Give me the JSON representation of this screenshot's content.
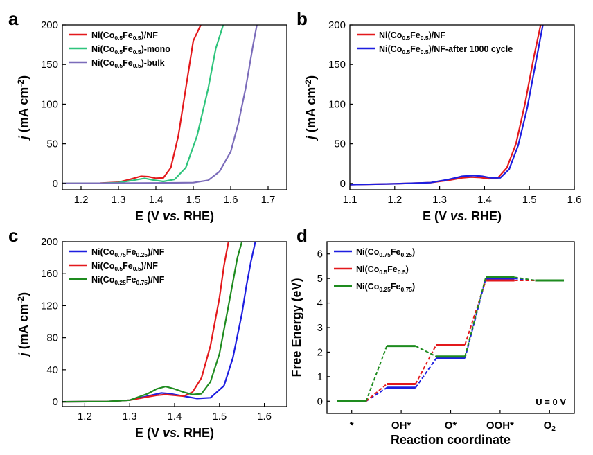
{
  "chart_data": [
    {
      "panel": "a",
      "type": "line",
      "xlabel": "E (V vs. RHE)",
      "ylabel": "j (mA cm-2)",
      "xlim": [
        1.15,
        1.75
      ],
      "ylim": [
        -8,
        200
      ],
      "xticks": [
        "1.2",
        "1.3",
        "1.4",
        "1.5",
        "1.6",
        "1.7"
      ],
      "yticks": [
        "0",
        "50",
        "100",
        "150",
        "200"
      ],
      "legend_position": "top-left",
      "series": [
        {
          "name": "Ni(Co0.5Fe0.5)/NF",
          "color": "#e3191c",
          "x": [
            1.15,
            1.25,
            1.3,
            1.33,
            1.36,
            1.38,
            1.4,
            1.42,
            1.44,
            1.46,
            1.48,
            1.5,
            1.52
          ],
          "y": [
            0,
            0.3,
            1.5,
            5,
            9,
            8.5,
            6.5,
            7,
            20,
            60,
            120,
            180,
            200
          ]
        },
        {
          "name": "Ni(Co0.5Fe0.5)-mono",
          "color": "#2ec47c",
          "x": [
            1.15,
            1.25,
            1.3,
            1.34,
            1.37,
            1.39,
            1.42,
            1.45,
            1.48,
            1.51,
            1.54,
            1.56,
            1.58
          ],
          "y": [
            0,
            0.2,
            1,
            4,
            6.5,
            4.5,
            2.5,
            5,
            20,
            60,
            120,
            170,
            200
          ]
        },
        {
          "name": "Ni(Co0.5Fe0.5)-bulk",
          "color": "#7b6cba",
          "x": [
            1.15,
            1.3,
            1.4,
            1.5,
            1.54,
            1.57,
            1.6,
            1.62,
            1.64,
            1.66,
            1.67
          ],
          "y": [
            0,
            0.3,
            0.6,
            1,
            4,
            15,
            40,
            75,
            120,
            175,
            200
          ]
        }
      ],
      "legend": [
        "Ni(Co0.5Fe0.5)/NF",
        "Ni(Co0.5Fe0.5)-mono",
        "Ni(Co0.5Fe0.5)-bulk"
      ]
    },
    {
      "panel": "b",
      "type": "line",
      "xlabel": "E (V vs. RHE)",
      "ylabel": "j (mA cm-2)",
      "xlim": [
        1.1,
        1.6
      ],
      "ylim": [
        -8,
        200
      ],
      "xticks": [
        "1.1",
        "1.2",
        "1.3",
        "1.4",
        "1.5",
        "1.6"
      ],
      "yticks": [
        "0",
        "50",
        "100",
        "150",
        "200"
      ],
      "legend_position": "top-left",
      "series": [
        {
          "name": "Ni(Co0.5Fe0.5)/NF",
          "color": "#e3191c",
          "x": [
            1.1,
            1.2,
            1.28,
            1.32,
            1.35,
            1.37,
            1.39,
            1.41,
            1.43,
            1.45,
            1.47,
            1.49,
            1.51,
            1.525
          ],
          "y": [
            -1.5,
            -0.5,
            1,
            4,
            7,
            8,
            7.5,
            6,
            7,
            20,
            50,
            100,
            160,
            200
          ]
        },
        {
          "name": "Ni(Co0.5Fe0.5)/NF-after 1000 cycle",
          "color": "#1d1ee0",
          "x": [
            1.1,
            1.2,
            1.28,
            1.32,
            1.35,
            1.375,
            1.395,
            1.415,
            1.435,
            1.455,
            1.475,
            1.495,
            1.515,
            1.53
          ],
          "y": [
            -1.5,
            -0.5,
            1,
            5,
            9,
            10,
            9,
            7,
            7,
            18,
            48,
            95,
            155,
            200
          ]
        }
      ],
      "legend": [
        "Ni(Co0.5Fe0.5)/NF",
        "Ni(Co0.5Fe0.5)/NF-after 1000 cycle"
      ]
    },
    {
      "panel": "c",
      "type": "line",
      "xlabel": "E (V vs. RHE)",
      "ylabel": "j (mA cm-2)",
      "xlim": [
        1.15,
        1.65
      ],
      "ylim": [
        -6,
        200
      ],
      "xticks": [
        "1.2",
        "1.3",
        "1.4",
        "1.5",
        "1.6"
      ],
      "yticks": [
        "0",
        "40",
        "80",
        "120",
        "160",
        "200"
      ],
      "legend_position": "top-left",
      "series": [
        {
          "name": "Ni(Co0.75Fe0.25)/NF",
          "color": "#1d1ee0",
          "x": [
            1.15,
            1.25,
            1.3,
            1.34,
            1.37,
            1.39,
            1.42,
            1.45,
            1.48,
            1.51,
            1.53,
            1.55,
            1.56,
            1.57,
            1.58
          ],
          "y": [
            0,
            0.3,
            2,
            7,
            11,
            10,
            7,
            4,
            5,
            20,
            55,
            110,
            145,
            175,
            200
          ]
        },
        {
          "name": "Ni(Co0.5Fe0.5)/NF",
          "color": "#e3191c",
          "x": [
            1.15,
            1.25,
            1.3,
            1.34,
            1.36,
            1.38,
            1.4,
            1.42,
            1.44,
            1.46,
            1.48,
            1.5,
            1.51,
            1.52
          ],
          "y": [
            0,
            0.3,
            2,
            6,
            8,
            9,
            8,
            7,
            12,
            30,
            70,
            130,
            170,
            200
          ]
        },
        {
          "name": "Ni(Co0.25Fe0.75)/NF",
          "color": "#1e8b1f",
          "x": [
            1.15,
            1.25,
            1.3,
            1.34,
            1.36,
            1.38,
            1.4,
            1.42,
            1.44,
            1.46,
            1.48,
            1.5,
            1.52,
            1.54,
            1.55
          ],
          "y": [
            0,
            0.3,
            2,
            10,
            16,
            19,
            16,
            12,
            9,
            10,
            25,
            60,
            120,
            180,
            200
          ]
        }
      ],
      "legend": [
        "Ni(Co0.75Fe0.25)/NF",
        "Ni(Co0.5Fe0.5)/NF",
        "Ni(Co0.25Fe0.75)/NF"
      ]
    },
    {
      "panel": "d",
      "type": "line",
      "xlabel": "Reaction coordinate",
      "ylabel": "Free Energy (eV)",
      "ylim": [
        -0.5,
        6.5
      ],
      "yticks": [
        "0",
        "1",
        "2",
        "3",
        "4",
        "5",
        "6"
      ],
      "categories": [
        "*",
        "OH*",
        "O*",
        "OOH*",
        "O2"
      ],
      "annotation": "U = 0 V",
      "legend_position": "top-left",
      "series": [
        {
          "name": "Ni(Co0.75Fe0.25)",
          "color": "#1d1ee0",
          "values": [
            0,
            0.55,
            1.75,
            5.0,
            4.92
          ]
        },
        {
          "name": "Ni(Co0.5Fe0.5)",
          "color": "#e3191c",
          "values": [
            0,
            0.7,
            2.3,
            4.92,
            4.92
          ]
        },
        {
          "name": "Ni(Co0.25Fe0.75)",
          "color": "#1e8b1f",
          "values": [
            0,
            2.25,
            1.82,
            5.05,
            4.92
          ]
        }
      ],
      "legend": [
        "Ni(Co0.75Fe0.25)",
        "Ni(Co0.5Fe0.5)",
        "Ni(Co0.25Fe0.75)"
      ]
    }
  ]
}
